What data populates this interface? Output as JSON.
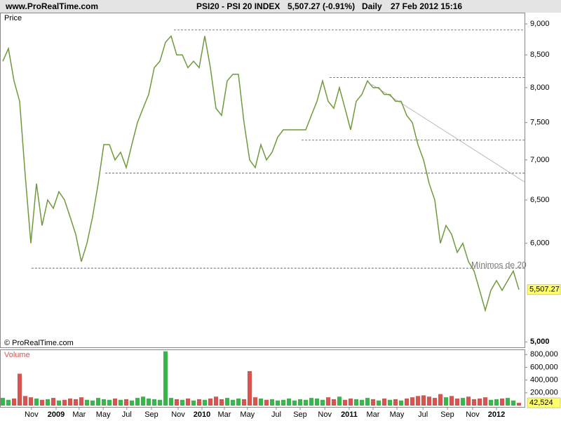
{
  "header": {
    "site": "www.ProRealTime.com",
    "instrument": "PSI20 - PSI 20 INDEX",
    "quote": "5,507.27 (-0.91%)",
    "period": "Daily",
    "timestamp": "27 Feb 2012 15:16"
  },
  "chart_data": [
    {
      "type": "line",
      "title": "Price",
      "watermark": "© ProRealTime.com",
      "log_scale": true,
      "color": "#6f9a3c",
      "up_color": "#39b54a",
      "down_color": "#d9534f",
      "xlim": [
        0,
        92
      ],
      "xticks": [
        {
          "value": 5.1,
          "label": "Nov"
        },
        {
          "value": 9.5,
          "label": "2009"
        },
        {
          "value": 13.6,
          "label": "Mar"
        },
        {
          "value": 17.9,
          "label": "May"
        },
        {
          "value": 22.1,
          "label": "Jul"
        },
        {
          "value": 26.5,
          "label": "Sep"
        },
        {
          "value": 31.25,
          "label": "Nov"
        },
        {
          "value": 35.5,
          "label": "2010"
        },
        {
          "value": 39.5,
          "label": "Mar"
        },
        {
          "value": 43.6,
          "label": "May"
        },
        {
          "value": 48.75,
          "label": "Jul"
        },
        {
          "value": 53,
          "label": "Sep"
        },
        {
          "value": 57.4,
          "label": "Nov"
        },
        {
          "value": 61.75,
          "label": "2011"
        },
        {
          "value": 66,
          "label": "Mar"
        },
        {
          "value": 70.25,
          "label": "May"
        },
        {
          "value": 74.9,
          "label": "Jul"
        },
        {
          "value": 79.25,
          "label": "Sep"
        },
        {
          "value": 83.75,
          "label": "Nov"
        },
        {
          "value": 88,
          "label": "2012"
        }
      ],
      "ylim": [
        4950,
        9190
      ],
      "yticks": [
        {
          "value": 5000,
          "label": "5,000"
        },
        {
          "value": 6000,
          "label": "6,000"
        },
        {
          "value": 6500,
          "label": "6,500"
        },
        {
          "value": 7000,
          "label": "7,000"
        },
        {
          "value": 7500,
          "label": "7,500"
        },
        {
          "value": 8000,
          "label": "8,000"
        },
        {
          "value": 8500,
          "label": "8,500"
        },
        {
          "value": 9000,
          "label": "9,000"
        }
      ],
      "values": [
        8400,
        8600,
        8100,
        7800,
        6800,
        6000,
        6700,
        6200,
        6500,
        6400,
        6600,
        6500,
        6300,
        6100,
        5800,
        6000,
        6300,
        6700,
        7200,
        7200,
        7000,
        7100,
        6900,
        7200,
        7500,
        7700,
        7900,
        8300,
        8400,
        8700,
        8800,
        8500,
        8500,
        8300,
        8400,
        8300,
        8800,
        8300,
        7700,
        7600,
        8100,
        8200,
        8200,
        7500,
        7000,
        6900,
        7200,
        7000,
        7100,
        7300,
        7400,
        7400,
        7400,
        7400,
        7400,
        7600,
        7800,
        8100,
        7800,
        7700,
        8000,
        7700,
        7400,
        7800,
        7900,
        8100,
        8000,
        8000,
        7900,
        7900,
        7800,
        7800,
        7600,
        7500,
        7200,
        7000,
        6700,
        6500,
        6000,
        6200,
        6100,
        5900,
        6000,
        5800,
        5700,
        5500,
        5300,
        5500,
        5600,
        5500,
        5600,
        5700,
        5507.27
      ],
      "last": {
        "value": 5507.27,
        "label": "5,507.27"
      },
      "hlines": [
        {
          "value": 8900,
          "start": 30.5
        },
        {
          "value": 8150,
          "start": 58.25
        },
        {
          "value": 7260,
          "start": 53.25
        },
        {
          "value": 6830,
          "start": 18.25
        },
        {
          "value": 5730,
          "start": 5.1
        }
      ],
      "trendline": {
        "x": [
          65.75,
          93
        ],
        "y": [
          8050,
          6720
        ]
      },
      "annotation": {
        "text": "Mínimos de 20",
        "x": 83.5,
        "y": 5760
      }
    },
    {
      "type": "bar",
      "title": "Volume",
      "up_color": "#39b54a",
      "down_color": "#d9534f",
      "ylim": [
        0,
        880000
      ],
      "yticks": [
        {
          "value": 200000,
          "label": "200,000"
        },
        {
          "value": 400000,
          "label": "400,000"
        },
        {
          "value": 600000,
          "label": "600,000"
        },
        {
          "value": 800000,
          "label": "800,000"
        }
      ],
      "values": [
        120000,
        90000,
        110000,
        500000,
        150000,
        130000,
        110000,
        90000,
        100000,
        120000,
        80000,
        90000,
        110000,
        100000,
        130000,
        90000,
        80000,
        120000,
        100000,
        90000,
        110000,
        90000,
        100000,
        80000,
        120000,
        140000,
        110000,
        100000,
        90000,
        850000,
        120000,
        100000,
        90000,
        110000,
        80000,
        100000,
        90000,
        110000,
        140000,
        100000,
        120000,
        90000,
        110000,
        100000,
        540000,
        130000,
        110000,
        90000,
        100000,
        80000,
        90000,
        110000,
        80000,
        100000,
        90000,
        120000,
        110000,
        90000,
        130000,
        100000,
        140000,
        90000,
        110000,
        100000,
        90000,
        120000,
        100000,
        80000,
        110000,
        90000,
        100000,
        80000,
        110000,
        130000,
        150000,
        160000,
        140000,
        120000,
        180000,
        130000,
        150000,
        110000,
        120000,
        140000,
        100000,
        110000,
        130000,
        90000,
        100000,
        110000,
        120000,
        80000,
        42524
      ],
      "last": {
        "value": 42524,
        "label": "42,524"
      }
    }
  ]
}
